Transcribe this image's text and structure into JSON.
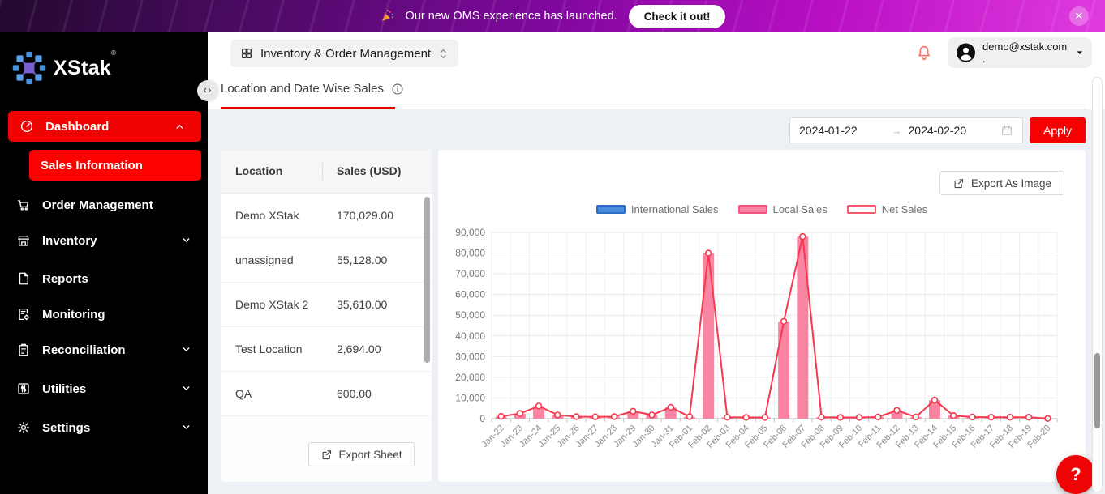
{
  "colors": {
    "accent_red": "#f50101",
    "sidebar_active_red": "#fd0101",
    "banner_magenta": "#b90fc4",
    "bar_pink": "#fa85a3",
    "line_red": "#f5384e",
    "legend_blue": "#4a8fdc"
  },
  "banner": {
    "message": "Our new OMS experience has launched.",
    "cta_label": "Check it out!",
    "close_icon": "✕",
    "icon": "party-popper-icon"
  },
  "sidebar": {
    "logo_text": "XStak",
    "logo_mark": "®",
    "items": [
      {
        "label": "Dashboard",
        "icon": "dashboard-icon",
        "state": "active-expanded"
      },
      {
        "label": "Sales Information",
        "state": "active"
      },
      {
        "label": "Order Management",
        "icon": "cart-icon"
      },
      {
        "label": "Inventory",
        "icon": "store-icon",
        "chevron": "down"
      },
      {
        "label": "Reports",
        "icon": "document-icon"
      },
      {
        "label": "Monitoring",
        "icon": "monitor-doc-icon"
      },
      {
        "label": "Reconciliation",
        "icon": "clipboard-icon",
        "chevron": "down"
      },
      {
        "label": "Utilities",
        "icon": "sliders-icon",
        "chevron": "down"
      },
      {
        "label": "Settings",
        "icon": "gear-icon",
        "chevron": "down"
      }
    ]
  },
  "header": {
    "app_selector_label": "Inventory & Order Management",
    "user_email": "demo@xstak.com ."
  },
  "tabs": {
    "active_tab": "Location and Date Wise Sales"
  },
  "collapse_toggle": "‹›",
  "filters": {
    "start_date": "2024-01-22",
    "end_date": "2024-02-20",
    "range_separator": "→",
    "apply_label": "Apply"
  },
  "table": {
    "columns": [
      "Location",
      "Sales (USD)"
    ],
    "rows": [
      [
        "Demo XStak",
        "170,029.00"
      ],
      [
        "unassigned",
        "55,128.00"
      ],
      [
        "Demo XStak 2",
        "35,610.00"
      ],
      [
        "Test Location",
        "2,694.00"
      ],
      [
        "QA",
        "600.00"
      ]
    ],
    "export_label": "Export Sheet"
  },
  "chart_panel": {
    "export_label": "Export As Image"
  },
  "chart_data": {
    "type": "bar",
    "title": "Location and Date Wise Sales",
    "xlabel": "",
    "ylabel": "",
    "ylim": [
      0,
      90000
    ],
    "ytick_step": 10000,
    "grid": true,
    "legend_position": "top",
    "categories": [
      "Jan-22",
      "Jan-23",
      "Jan-24",
      "Jan-25",
      "Jan-26",
      "Jan-27",
      "Jan-28",
      "Jan-29",
      "Jan-30",
      "Jan-31",
      "Feb-01",
      "Feb-02",
      "Feb-03",
      "Feb-04",
      "Feb-05",
      "Feb-06",
      "Feb-07",
      "Feb-08",
      "Feb-09",
      "Feb-10",
      "Feb-11",
      "Feb-12",
      "Feb-13",
      "Feb-14",
      "Feb-15",
      "Feb-16",
      "Feb-17",
      "Feb-18",
      "Feb-19",
      "Feb-20"
    ],
    "series": [
      {
        "name": "International Sales",
        "type": "bar",
        "color": "#4a8fdc",
        "border": "#2f6cc4",
        "values": [
          0,
          0,
          0,
          0,
          0,
          0,
          0,
          0,
          0,
          0,
          0,
          0,
          0,
          0,
          0,
          0,
          0,
          0,
          0,
          0,
          0,
          0,
          0,
          0,
          0,
          0,
          0,
          0,
          0,
          0
        ]
      },
      {
        "name": "Local Sales",
        "type": "bar",
        "color": "#fa85a3",
        "border": "#f2547e",
        "values": [
          1100,
          2500,
          6100,
          1800,
          1000,
          900,
          1000,
          3600,
          1800,
          5500,
          1000,
          80000,
          700,
          600,
          600,
          47000,
          88000,
          700,
          600,
          600,
          800,
          4000,
          800,
          9000,
          1500,
          800,
          700,
          700,
          700,
          100
        ]
      },
      {
        "name": "Net Sales",
        "type": "line",
        "color": "#f5384e",
        "border": "#f5596b",
        "values": [
          1100,
          2500,
          6100,
          1800,
          1000,
          900,
          1000,
          3600,
          1800,
          5500,
          1000,
          80000,
          700,
          600,
          600,
          47000,
          88000,
          700,
          600,
          600,
          800,
          4000,
          800,
          9000,
          1500,
          800,
          700,
          700,
          700,
          100
        ]
      }
    ]
  },
  "help_fab_label": "?"
}
